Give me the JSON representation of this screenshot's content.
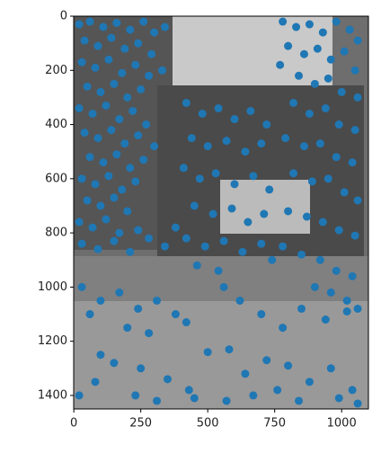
{
  "chart_data": {
    "type": "scatter",
    "color": "#1f77b4",
    "xlim": [
      -0.5,
      1100
    ],
    "ylim": [
      1450,
      0
    ],
    "xticks": [
      0,
      250,
      500,
      750,
      1000
    ],
    "yticks": [
      0,
      200,
      400,
      600,
      800,
      1000,
      1200,
      1400
    ],
    "x": [
      20,
      60,
      110,
      160,
      210,
      260,
      300,
      340,
      40,
      90,
      140,
      190,
      240,
      290,
      30,
      80,
      130,
      180,
      230,
      280,
      330,
      50,
      100,
      150,
      200,
      250,
      20,
      70,
      120,
      170,
      220,
      270,
      40,
      90,
      140,
      190,
      240,
      300,
      60,
      110,
      160,
      210,
      260,
      30,
      80,
      130,
      180,
      230,
      50,
      100,
      150,
      200,
      20,
      70,
      120,
      170,
      240,
      30,
      90,
      150,
      210,
      280,
      340,
      380,
      780,
      830,
      880,
      930,
      980,
      1030,
      1060,
      800,
      860,
      910,
      960,
      1010,
      1050,
      770,
      840,
      900,
      950,
      1000,
      1060,
      820,
      880,
      940,
      990,
      1050,
      790,
      860,
      920,
      980,
      1040,
      820,
      890,
      950,
      1010,
      1060,
      800,
      870,
      930,
      990,
      1050,
      780,
      850,
      920,
      980,
      1040,
      900,
      960,
      1020,
      1060,
      420,
      480,
      540,
      600,
      660,
      720,
      440,
      500,
      570,
      640,
      700,
      410,
      470,
      530,
      600,
      670,
      730,
      450,
      520,
      590,
      650,
      710,
      420,
      490,
      560,
      630,
      700,
      740,
      460,
      540,
      30,
      100,
      170,
      240,
      310,
      380,
      60,
      200,
      280,
      420,
      560,
      620,
      700,
      780,
      850,
      940,
      1020,
      100,
      150,
      250,
      350,
      430,
      500,
      580,
      640,
      720,
      800,
      880,
      960,
      1040,
      20,
      80,
      230,
      310,
      450,
      570,
      670,
      760,
      840,
      990,
      1060
    ],
    "values": [
      30,
      20,
      40,
      25,
      50,
      20,
      60,
      40,
      90,
      110,
      80,
      120,
      100,
      140,
      170,
      190,
      160,
      210,
      180,
      220,
      200,
      260,
      280,
      250,
      300,
      270,
      340,
      360,
      330,
      380,
      350,
      400,
      430,
      450,
      420,
      470,
      440,
      480,
      520,
      540,
      510,
      560,
      530,
      600,
      620,
      590,
      640,
      610,
      680,
      700,
      670,
      720,
      760,
      780,
      750,
      800,
      790,
      840,
      860,
      830,
      870,
      820,
      850,
      780,
      20,
      40,
      30,
      60,
      20,
      50,
      90,
      110,
      140,
      120,
      160,
      130,
      200,
      180,
      220,
      250,
      230,
      280,
      300,
      320,
      360,
      340,
      400,
      420,
      450,
      480,
      470,
      520,
      540,
      580,
      610,
      600,
      650,
      680,
      720,
      740,
      760,
      790,
      810,
      850,
      880,
      900,
      940,
      960,
      1000,
      1020,
      1050,
      1080,
      320,
      360,
      340,
      380,
      350,
      400,
      450,
      480,
      460,
      500,
      470,
      560,
      600,
      580,
      620,
      590,
      640,
      700,
      730,
      710,
      760,
      730,
      820,
      850,
      830,
      870,
      840,
      900,
      920,
      940,
      1000,
      1050,
      1020,
      1080,
      1050,
      1100,
      1100,
      1150,
      1170,
      1130,
      1000,
      1050,
      1100,
      1150,
      1080,
      1120,
      1090,
      1250,
      1280,
      1300,
      1340,
      1380,
      1240,
      1230,
      1320,
      1270,
      1290,
      1350,
      1300,
      1380,
      1400,
      1350,
      1400,
      1420,
      1410,
      1420,
      1400,
      1380,
      1420,
      1410,
      1430
    ]
  }
}
